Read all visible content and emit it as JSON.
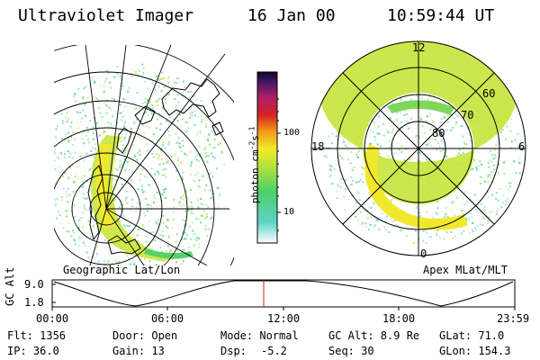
{
  "header": {
    "title": "Ultraviolet Imager",
    "date": "16 Jan 00",
    "time": "10:59:44 UT"
  },
  "colorbar": {
    "label": "photon cm",
    "label_exp1": "-2",
    "label_s": "s",
    "label_exp2": "-1",
    "ticks": [
      "100",
      "10"
    ]
  },
  "left_panel": {
    "caption": "Geographic Lat/Lon"
  },
  "right_panel": {
    "caption": "Apex MLat/MLT",
    "mlt_labels": [
      "12",
      "18",
      "6",
      "0"
    ],
    "lat_labels": [
      "60",
      "70",
      "80"
    ]
  },
  "altitude_plot": {
    "ylabel": "GC Alt",
    "yticks": [
      "9.0",
      "1.8"
    ],
    "xticks": [
      "00:00",
      "06:00",
      "12:00",
      "18:00",
      "23:59"
    ]
  },
  "info": {
    "row1": [
      "Flt: 1356",
      "Door: Open",
      "Mode: Normal",
      "GC Alt: 8.9 Re",
      "GLat: 71.0"
    ],
    "row2": [
      "IP: 36.0",
      "Gain: 13",
      "Dsp:",
      "-5.2",
      "Seq: 30",
      "GLon: 154.3"
    ]
  }
}
